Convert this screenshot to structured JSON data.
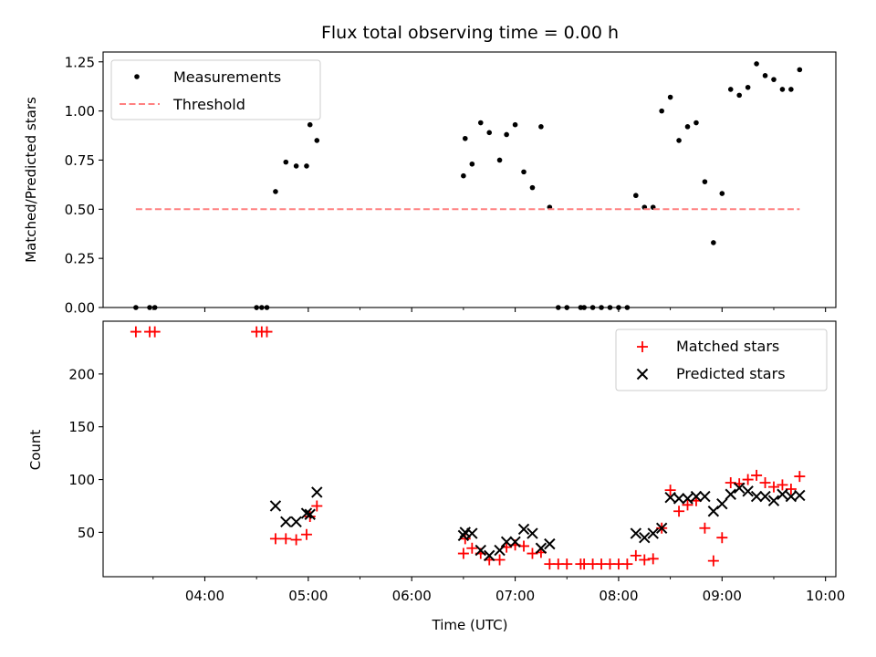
{
  "title": "Flux total observing time = 0.00 h",
  "chart_data": [
    {
      "type": "scatter",
      "panel": "top",
      "ylabel": "Matched/Predicted stars",
      "ylim": [
        0,
        1.3
      ],
      "yticks": [
        0.0,
        0.25,
        0.5,
        0.75,
        1.0,
        1.25
      ],
      "ytick_labels": [
        "0.00",
        "0.25",
        "0.50",
        "0.75",
        "1.00",
        "1.25"
      ],
      "x_ticks": [
        "04:00",
        "05:00",
        "06:00",
        "07:00",
        "08:00",
        "09:00",
        "10:00"
      ],
      "x_tick_labels_shown": false,
      "xlim": [
        "03:01",
        "10:06"
      ],
      "legend": {
        "position": "upper-left",
        "entries": [
          "Measurements",
          "Threshold"
        ]
      },
      "series": [
        {
          "name": "Measurements",
          "style": "black-dot",
          "color": "#000000",
          "points": [
            [
              "03:20",
              0.0
            ],
            [
              "03:28",
              0.0
            ],
            [
              "03:31",
              0.0
            ],
            [
              "04:30",
              0.0
            ],
            [
              "04:33",
              0.0
            ],
            [
              "04:36",
              0.0
            ],
            [
              "04:41",
              0.59
            ],
            [
              "04:47",
              0.74
            ],
            [
              "04:53",
              0.72
            ],
            [
              "04:59",
              0.72
            ],
            [
              "05:01",
              0.93
            ],
            [
              "05:05",
              0.85
            ],
            [
              "06:30",
              0.67
            ],
            [
              "06:31",
              0.86
            ],
            [
              "06:35",
              0.73
            ],
            [
              "06:40",
              0.94
            ],
            [
              "06:45",
              0.89
            ],
            [
              "06:51",
              0.75
            ],
            [
              "06:55",
              0.88
            ],
            [
              "07:00",
              0.93
            ],
            [
              "07:05",
              0.69
            ],
            [
              "07:10",
              0.61
            ],
            [
              "07:15",
              0.92
            ],
            [
              "07:20",
              0.51
            ],
            [
              "07:25",
              0.0
            ],
            [
              "07:30",
              0.0
            ],
            [
              "07:38",
              0.0
            ],
            [
              "07:40",
              0.0
            ],
            [
              "07:45",
              0.0
            ],
            [
              "07:50",
              0.0
            ],
            [
              "07:55",
              0.0
            ],
            [
              "08:00",
              0.0
            ],
            [
              "08:05",
              0.0
            ],
            [
              "08:10",
              0.57
            ],
            [
              "08:15",
              0.51
            ],
            [
              "08:20",
              0.51
            ],
            [
              "08:25",
              1.0
            ],
            [
              "08:30",
              1.07
            ],
            [
              "08:35",
              0.85
            ],
            [
              "08:40",
              0.92
            ],
            [
              "08:45",
              0.94
            ],
            [
              "08:50",
              0.64
            ],
            [
              "08:55",
              0.33
            ],
            [
              "09:00",
              0.58
            ],
            [
              "09:05",
              1.11
            ],
            [
              "09:10",
              1.08
            ],
            [
              "09:15",
              1.12
            ],
            [
              "09:20",
              1.24
            ],
            [
              "09:25",
              1.18
            ],
            [
              "09:30",
              1.16
            ],
            [
              "09:35",
              1.11
            ],
            [
              "09:40",
              1.11
            ],
            [
              "09:45",
              1.21
            ]
          ]
        },
        {
          "name": "Threshold",
          "style": "dashed-line",
          "color": "#ff8080",
          "points": [
            [
              "03:20",
              0.5
            ],
            [
              "09:45",
              0.5
            ]
          ]
        }
      ]
    },
    {
      "type": "scatter",
      "panel": "bottom",
      "xlabel": "Time (UTC)",
      "ylabel": "Count",
      "ylim": [
        8,
        250
      ],
      "yticks": [
        50,
        100,
        150,
        200
      ],
      "ytick_labels": [
        "50",
        "100",
        "150",
        "200"
      ],
      "x_ticks": [
        "04:00",
        "05:00",
        "06:00",
        "07:00",
        "08:00",
        "09:00",
        "10:00"
      ],
      "x_tick_labels": [
        "04:00",
        "05:00",
        "06:00",
        "07:00",
        "08:00",
        "09:00",
        "10:00"
      ],
      "xlim": [
        "03:01",
        "10:06"
      ],
      "legend": {
        "position": "upper-right",
        "entries": [
          "Matched stars",
          "Predicted stars"
        ]
      },
      "series": [
        {
          "name": "Matched stars",
          "style": "red-plus",
          "color": "#ff0000",
          "points": [
            [
              "03:20",
              240
            ],
            [
              "03:28",
              240
            ],
            [
              "03:31",
              240
            ],
            [
              "04:30",
              240
            ],
            [
              "04:33",
              240
            ],
            [
              "04:36",
              240
            ],
            [
              "04:41",
              44
            ],
            [
              "04:47",
              44
            ],
            [
              "04:53",
              43
            ],
            [
              "04:59",
              48
            ],
            [
              "05:01",
              65
            ],
            [
              "05:05",
              75
            ],
            [
              "06:30",
              30
            ],
            [
              "06:31",
              44
            ],
            [
              "06:35",
              35
            ],
            [
              "06:40",
              30
            ],
            [
              "06:45",
              24
            ],
            [
              "06:51",
              24
            ],
            [
              "06:55",
              36
            ],
            [
              "07:00",
              38
            ],
            [
              "07:05",
              37
            ],
            [
              "07:10",
              30
            ],
            [
              "07:15",
              31
            ],
            [
              "07:20",
              20
            ],
            [
              "07:25",
              20
            ],
            [
              "07:30",
              20
            ],
            [
              "07:38",
              20
            ],
            [
              "07:40",
              20
            ],
            [
              "07:45",
              20
            ],
            [
              "07:50",
              20
            ],
            [
              "07:55",
              20
            ],
            [
              "08:00",
              20
            ],
            [
              "08:05",
              20
            ],
            [
              "08:10",
              28
            ],
            [
              "08:15",
              24
            ],
            [
              "08:20",
              25
            ],
            [
              "08:25",
              54
            ],
            [
              "08:30",
              90
            ],
            [
              "08:35",
              70
            ],
            [
              "08:40",
              76
            ],
            [
              "08:45",
              80
            ],
            [
              "08:50",
              54
            ],
            [
              "08:55",
              23
            ],
            [
              "09:00",
              45
            ],
            [
              "09:05",
              97
            ],
            [
              "09:10",
              96
            ],
            [
              "09:15",
              100
            ],
            [
              "09:20",
              104
            ],
            [
              "09:25",
              97
            ],
            [
              "09:30",
              93
            ],
            [
              "09:35",
              95
            ],
            [
              "09:40",
              91
            ],
            [
              "09:45",
              103
            ]
          ]
        },
        {
          "name": "Predicted stars",
          "style": "black-x",
          "color": "#000000",
          "points": [
            [
              "04:41",
              75
            ],
            [
              "04:47",
              60
            ],
            [
              "04:53",
              60
            ],
            [
              "04:59",
              68
            ],
            [
              "05:01",
              67
            ],
            [
              "05:05",
              88
            ],
            [
              "06:30",
              47
            ],
            [
              "06:31",
              50
            ],
            [
              "06:35",
              49
            ],
            [
              "06:40",
              33
            ],
            [
              "06:45",
              28
            ],
            [
              "06:51",
              33
            ],
            [
              "06:55",
              41
            ],
            [
              "07:00",
              41
            ],
            [
              "07:05",
              53
            ],
            [
              "07:10",
              49
            ],
            [
              "07:15",
              35
            ],
            [
              "07:20",
              39
            ],
            [
              "08:10",
              49
            ],
            [
              "08:15",
              45
            ],
            [
              "08:20",
              49
            ],
            [
              "08:25",
              54
            ],
            [
              "08:30",
              83
            ],
            [
              "08:35",
              82
            ],
            [
              "08:40",
              82
            ],
            [
              "08:45",
              84
            ],
            [
              "08:50",
              84
            ],
            [
              "08:55",
              70
            ],
            [
              "09:00",
              77
            ],
            [
              "09:05",
              86
            ],
            [
              "09:10",
              92
            ],
            [
              "09:15",
              89
            ],
            [
              "09:20",
              84
            ],
            [
              "09:25",
              84
            ],
            [
              "09:30",
              80
            ],
            [
              "09:35",
              86
            ],
            [
              "09:40",
              84
            ],
            [
              "09:45",
              85
            ]
          ]
        }
      ]
    }
  ]
}
